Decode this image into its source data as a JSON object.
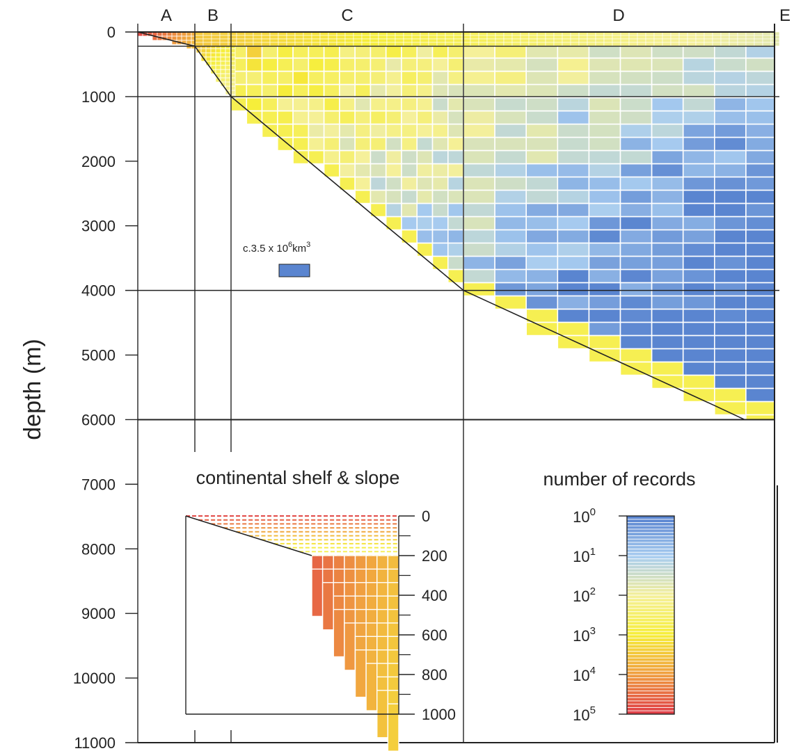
{
  "chart_data": {
    "type": "heatmap",
    "title": "",
    "ylabel": "depth (m)",
    "ylim": [
      0,
      11000
    ],
    "y_ticks": [
      "0",
      "1000",
      "2000",
      "3000",
      "4000",
      "5000",
      "6000",
      "7000",
      "8000",
      "9000",
      "10000",
      "11000"
    ],
    "zones": [
      "A",
      "B",
      "C",
      "D",
      "E"
    ],
    "scale_annotation_prefix": "c.3.5 x 10",
    "scale_annotation_exp": "6",
    "scale_annotation_suffix": "km",
    "scale_annotation_unit_exp": "3",
    "inset": {
      "title": "continental shelf & slope",
      "y_ticks": [
        "0",
        "200",
        "400",
        "600",
        "800",
        "1000"
      ]
    },
    "legend": {
      "title": "number of records",
      "labels": [
        {
          "base": "10",
          "exp": "0"
        },
        {
          "base": "10",
          "exp": "1"
        },
        {
          "base": "10",
          "exp": "2"
        },
        {
          "base": "10",
          "exp": "3"
        },
        {
          "base": "10",
          "exp": "4"
        },
        {
          "base": "10",
          "exp": "5"
        }
      ],
      "colors": [
        "#5a85d0",
        "#a9cdf0",
        "#f5f09a",
        "#f6ee3a",
        "#f0a040",
        "#e04048"
      ]
    }
  }
}
